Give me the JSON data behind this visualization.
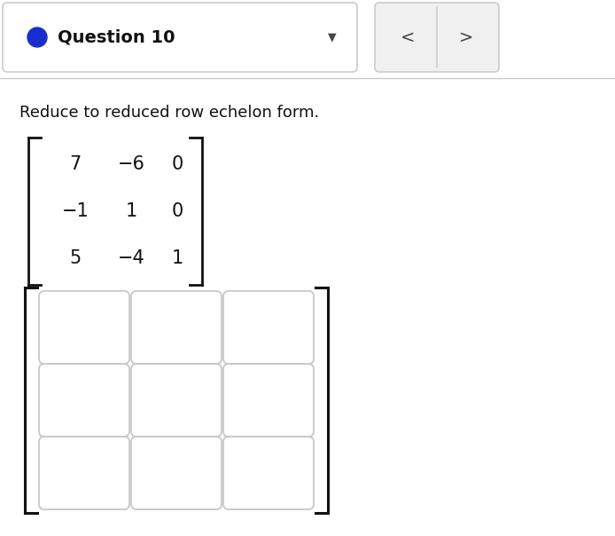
{
  "title": "Question 10",
  "instruction": "Reduce to reduced row echelon form.",
  "matrix": [
    [
      "7",
      "−6",
      "0"
    ],
    [
      "−1",
      "1",
      "0"
    ],
    [
      "5",
      "−4",
      "1"
    ]
  ],
  "bg_color": "#ffffff",
  "border_color": "#cccccc",
  "box_color": "#c8c8c8",
  "circle_color": "#1a2ecc",
  "text_color": "#111111",
  "nav_color": "#444444",
  "grid_rows": 3,
  "grid_cols": 3
}
